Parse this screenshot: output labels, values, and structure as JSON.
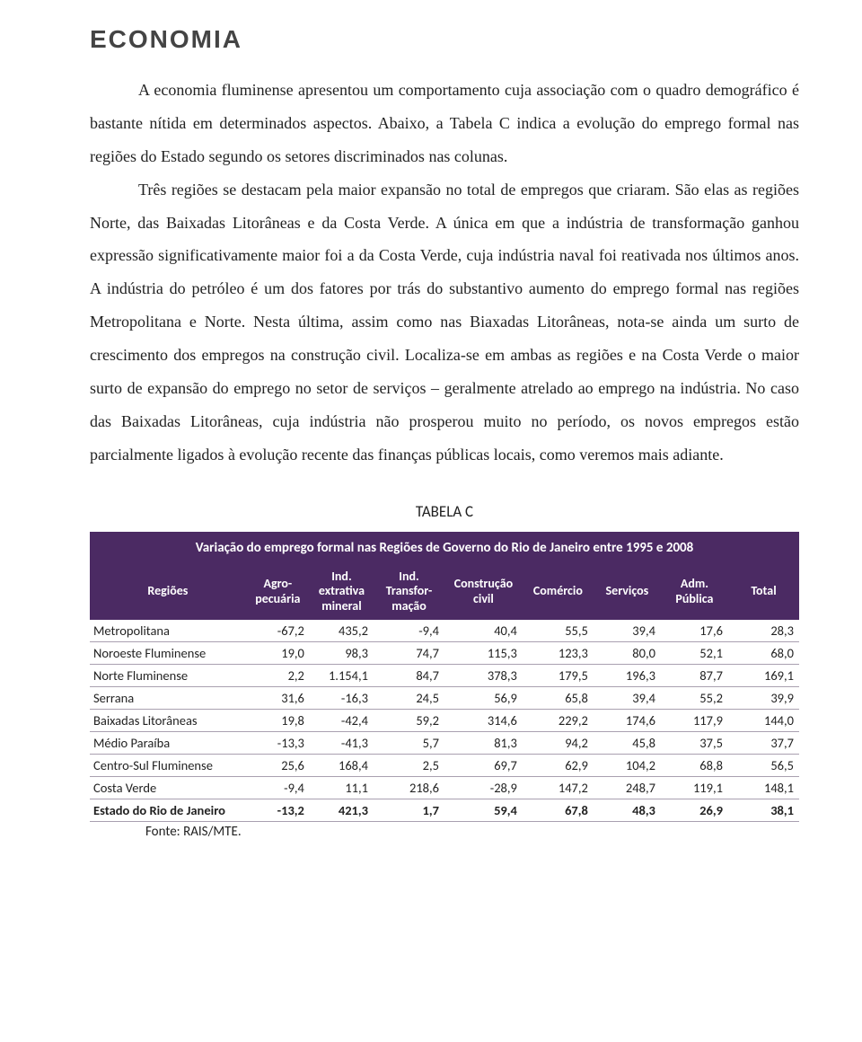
{
  "heading": "ECONOMIA",
  "paragraph1": "A economia fluminense apresentou um comportamento cuja associação com o quadro demográfico é bastante nítida em determinados aspectos. Abaixo, a Tabela C indica a evolução do emprego formal nas regiões do Estado segundo os setores discriminados nas colunas.",
  "paragraph2": "Três regiões se destacam pela maior expansão no total de empregos que criaram. São elas as regiões Norte, das Baixadas Litorâneas e da Costa Verde. A única em que a indústria de transformação ganhou expressão significativamente maior foi a da Costa Verde, cuja indústria naval foi reativada nos últimos anos. A indústria do petróleo é um dos fatores por trás do substantivo aumento do emprego formal nas regiões Metropolitana e Norte. Nesta última, assim como nas Biaxadas Litorâneas, nota-se ainda um surto de crescimento dos empregos na construção civil. Localiza-se em ambas as regiões e na Costa Verde o maior surto de expansão do emprego no setor de serviços – geralmente atrelado ao emprego na indústria. No caso das Baixadas Litorâneas, cuja indústria não prosperou muito no período, os novos empregos estão parcialmente ligados à evolução recente das finanças públicas locais, como veremos mais adiante.",
  "table_label": "TABELA C",
  "table_title": "Variação do emprego formal nas Regiões de Governo do Rio de Janeiro entre 1995 e 2008",
  "columns": [
    "Regiões",
    "Agro-\npecuária",
    "Ind.\nextrativa\nmineral",
    "Ind.\nTransfor-\nmação",
    "Construção\ncivil",
    "Comércio",
    "Serviços",
    "Adm.\nPública",
    "Total"
  ],
  "col_widths": [
    "22%",
    "9%",
    "9%",
    "10%",
    "11%",
    "10%",
    "9.5%",
    "9.5%",
    "10%"
  ],
  "rows": [
    [
      "Metropolitana",
      "-67,2",
      "435,2",
      "-9,4",
      "40,4",
      "55,5",
      "39,4",
      "17,6",
      "28,3"
    ],
    [
      "Noroeste Fluminense",
      "19,0",
      "98,3",
      "74,7",
      "115,3",
      "123,3",
      "80,0",
      "52,1",
      "68,0"
    ],
    [
      "Norte Fluminense",
      "2,2",
      "1.154,1",
      "84,7",
      "378,3",
      "179,5",
      "196,3",
      "87,7",
      "169,1"
    ],
    [
      "Serrana",
      "31,6",
      "-16,3",
      "24,5",
      "56,9",
      "65,8",
      "39,4",
      "55,2",
      "39,9"
    ],
    [
      "Baixadas Litorâneas",
      "19,8",
      "-42,4",
      "59,2",
      "314,6",
      "229,2",
      "174,6",
      "117,9",
      "144,0"
    ],
    [
      "Médio Paraíba",
      "-13,3",
      "-41,3",
      "5,7",
      "81,3",
      "94,2",
      "45,8",
      "37,5",
      "37,7"
    ],
    [
      "Centro-Sul Fluminense",
      "25,6",
      "168,4",
      "2,5",
      "69,7",
      "62,9",
      "104,2",
      "68,8",
      "56,5"
    ],
    [
      "Costa Verde",
      "-9,4",
      "11,1",
      "218,6",
      "-28,9",
      "147,2",
      "248,7",
      "119,1",
      "148,1"
    ]
  ],
  "total_row": [
    "Estado do Rio de Janeiro",
    "-13,2",
    "421,3",
    "1,7",
    "59,4",
    "67,8",
    "48,3",
    "26,9",
    "38,1"
  ],
  "source": "Fonte: RAIS/MTE.",
  "colors": {
    "header_bg": "#4b2a63",
    "header_fg": "#ffffff",
    "text": "#222222",
    "border": "#a9a0b0"
  }
}
